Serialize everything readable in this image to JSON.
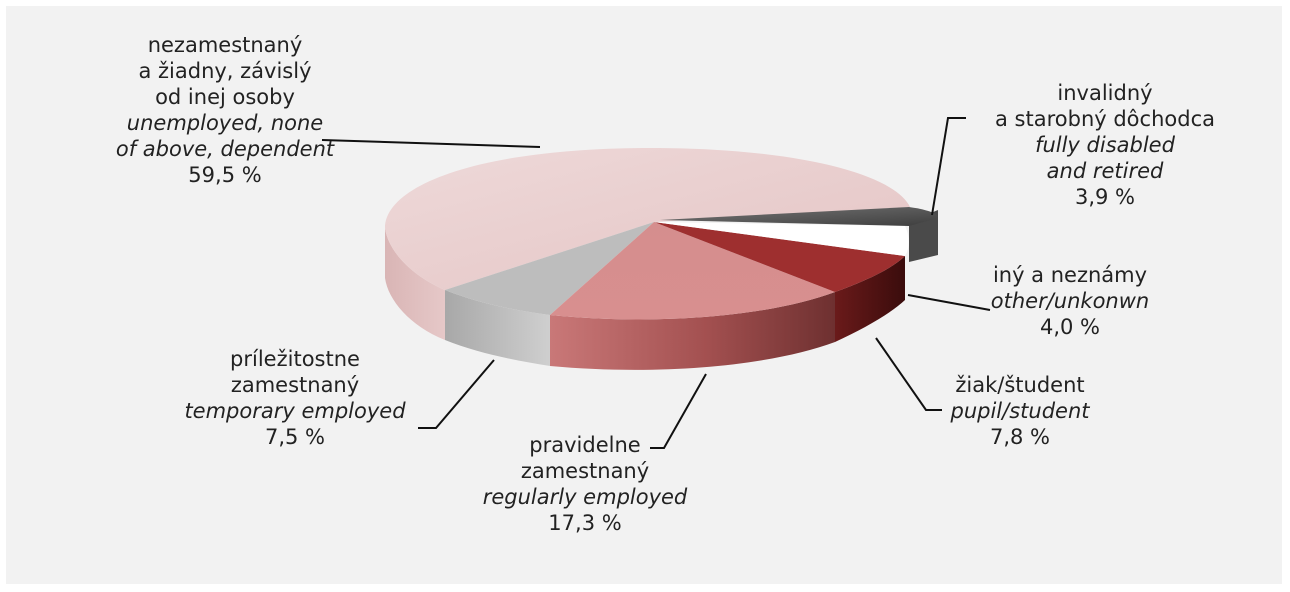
{
  "chart_data": {
    "type": "pie",
    "title": "",
    "slices": [
      {
        "label_sk": [
          "nezamestnaný",
          "a žiadny, závislý",
          "od inej osoby"
        ],
        "label_en": [
          "unemployed, none",
          "of above, dependent"
        ],
        "value_label": "59,5 %",
        "value": 59.5,
        "color": "#e8cccc"
      },
      {
        "label_sk": [
          "invalidný",
          "a starobný dôchodca"
        ],
        "label_en": [
          "fully disabled",
          "and retired"
        ],
        "value_label": "3,9 %",
        "value": 3.9,
        "color": "#5a5a5a",
        "exploded": true
      },
      {
        "label_sk": [
          "iný a neznámy"
        ],
        "label_en": [
          "other/unkonwn"
        ],
        "value_label": "4,0 %",
        "value": 4.0,
        "color": "#9e2f2f"
      },
      {
        "label_sk": [
          "žiak/študent"
        ],
        "label_en": [
          "pupil/student"
        ],
        "value_label": "7,8 %",
        "value": 7.8,
        "color": "#c96a6a"
      },
      {
        "label_sk": [
          "pravidelne",
          "zamestnaný"
        ],
        "label_en": [
          "regularly employed"
        ],
        "value_label": "17,3 %",
        "value": 17.3,
        "color": "#d99393"
      },
      {
        "label_sk": [
          "príležitostne",
          "zamestnaný"
        ],
        "label_en": [
          "temporary employed"
        ],
        "value_label": "7,5 %",
        "value": 7.5,
        "color": "#b9b9b9"
      }
    ],
    "legend": "none"
  }
}
